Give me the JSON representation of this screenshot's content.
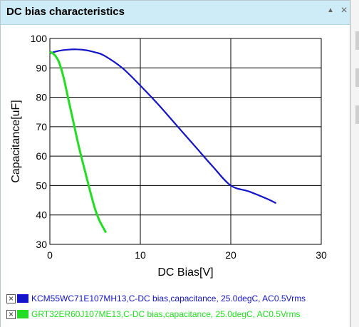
{
  "window": {
    "title": "DC bias characteristics",
    "collapse_icon": "chevron-up-icon",
    "close_icon": "close-icon"
  },
  "legend": [
    {
      "label": "KCM55WC71E107MH13,C-DC bias,capacitance, 25.0degC, AC0.5Vrms",
      "color": "#1414c8",
      "checked": true
    },
    {
      "label": "GRT32ER60J107ME13,C-DC bias,capacitance, 25.0degC, AC0.5Vrms",
      "color": "#22dd22",
      "checked": true
    }
  ],
  "chart_data": {
    "type": "line",
    "xlabel": "DC Bias[V]",
    "ylabel": "Capacitance[uF]",
    "xlim": [
      0,
      30
    ],
    "ylim": [
      30,
      100
    ],
    "xticks": [
      0,
      10,
      20,
      30
    ],
    "yticks": [
      30,
      40,
      50,
      60,
      70,
      80,
      90,
      100
    ],
    "grid": true,
    "series": [
      {
        "name": "KCM55WC71E107MH13,C-DC bias,capacitance, 25.0degC, AC0.5Vrms",
        "color": "#1414c8",
        "x": [
          0,
          1,
          2,
          3,
          4,
          5,
          6,
          8,
          10,
          12,
          14,
          16,
          18,
          20,
          22,
          24,
          25
        ],
        "y": [
          95,
          95.8,
          96.2,
          96.3,
          96,
          95.3,
          94.2,
          90,
          84,
          77.5,
          70.5,
          63.5,
          56.5,
          50,
          48,
          45.5,
          44
        ]
      },
      {
        "name": "GRT32ER60J107ME13,C-DC bias,capacitance, 25.0degC, AC0.5Vrms",
        "color": "#22dd22",
        "x": [
          0,
          0.5,
          1,
          1.5,
          2,
          2.5,
          3,
          3.5,
          4,
          4.5,
          5,
          5.5,
          6.2
        ],
        "y": [
          95.5,
          94.5,
          92,
          87,
          80,
          73,
          66,
          59.5,
          53.5,
          47.5,
          42,
          38,
          34
        ]
      }
    ]
  }
}
